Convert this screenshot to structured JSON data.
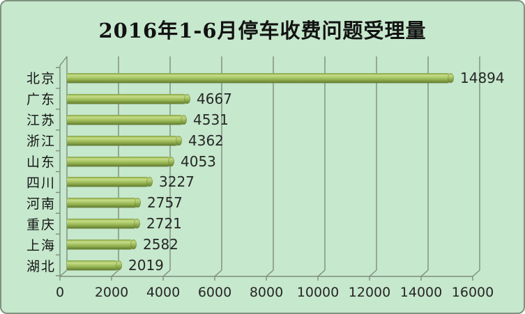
{
  "chart_data": {
    "type": "bar",
    "orientation": "horizontal",
    "style": "3d-cylinder",
    "title": "2016年1-6月停车收费问题受理量",
    "categories": [
      "北京",
      "广东",
      "江苏",
      "浙江",
      "山东",
      "四川",
      "河南",
      "重庆",
      "上海",
      "湖北"
    ],
    "values": [
      14894,
      4667,
      4531,
      4362,
      4053,
      3227,
      2757,
      2721,
      2582,
      2019
    ],
    "data_labels": [
      "14894",
      "4667",
      "4531",
      "4362",
      "4053",
      "3227",
      "2757",
      "2721",
      "2582",
      "2019"
    ],
    "x_ticks": [
      "0",
      "2000",
      "4000",
      "6000",
      "8000",
      "10000",
      "12000",
      "14000",
      "16000"
    ],
    "xlim": [
      0,
      16000
    ],
    "xlabel": "",
    "ylabel": "",
    "legend": "none",
    "grid": "vertical",
    "colors": {
      "background": "#c6e8cd",
      "bar_highlight": "#c6db88",
      "bar_mid": "#a0bf5d",
      "bar_dark": "#66802f",
      "axis_gridline": "#7d8d7d",
      "title_text": "#121212",
      "label_text": "#262626",
      "frame_border": "#7f917f"
    }
  }
}
